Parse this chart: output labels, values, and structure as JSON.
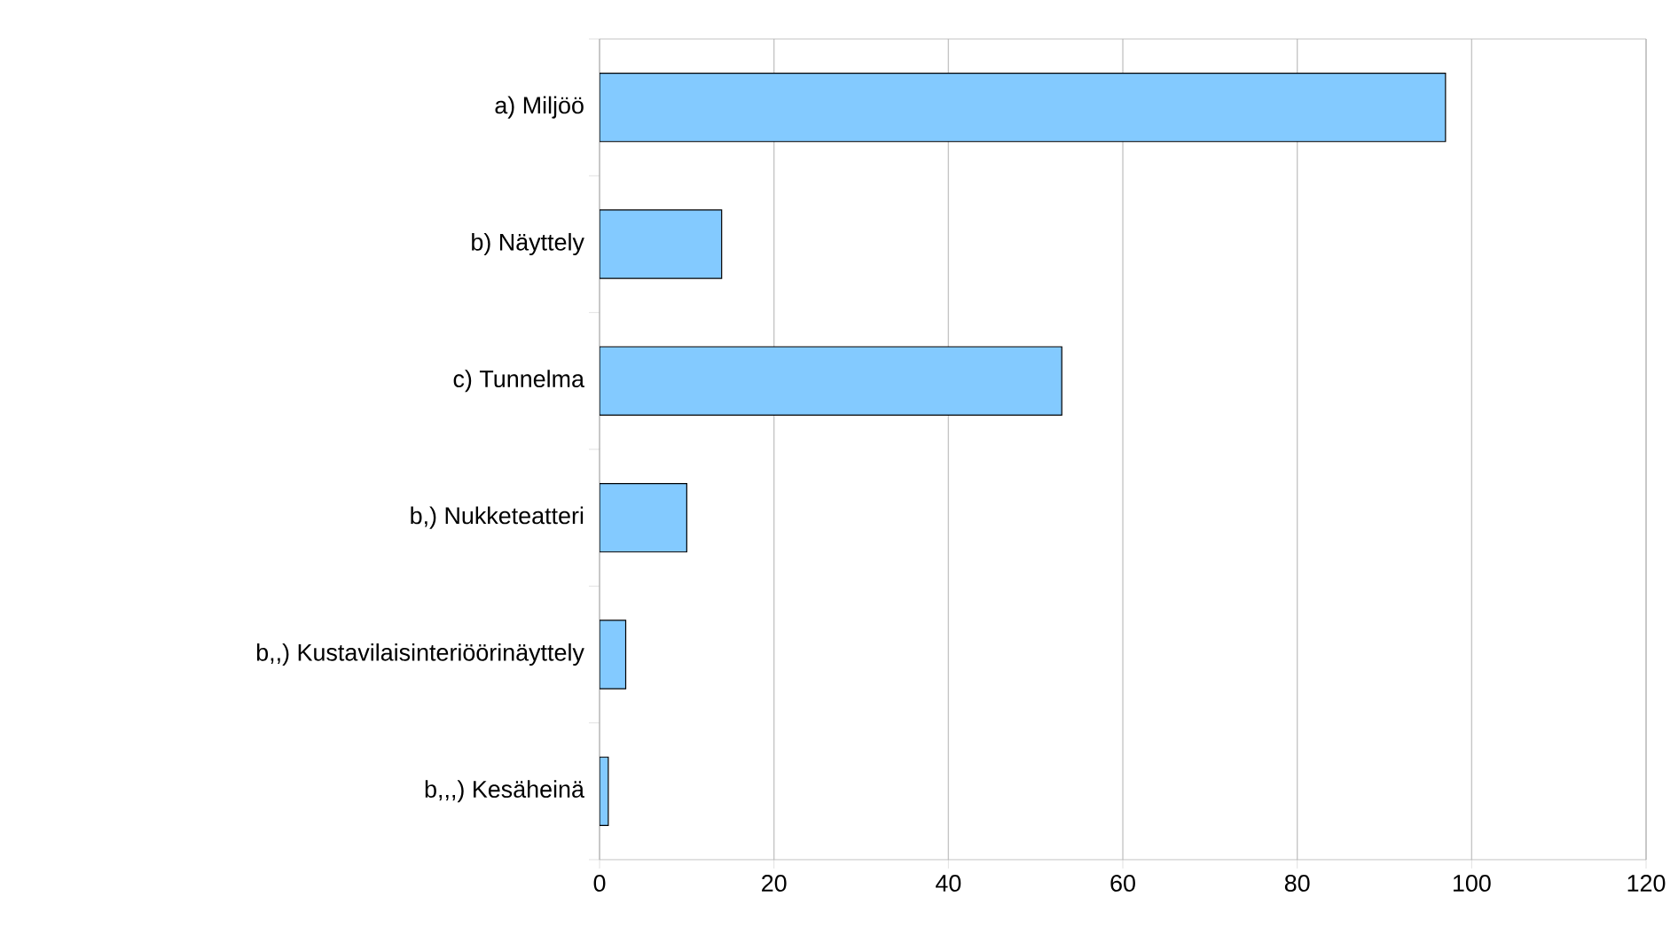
{
  "chart_data": {
    "type": "bar",
    "orientation": "horizontal",
    "categories": [
      "a) Miljöö",
      "b) Näyttely",
      "c) Tunnelma",
      "b,) Nukketeatteri",
      "b,,) Kustavilaisinteriöörinäyttely",
      "b,,,) Kesäheinä"
    ],
    "values": [
      97,
      14,
      53,
      10,
      3,
      1
    ],
    "color": "#83caff",
    "xlim": [
      0,
      120
    ],
    "xticks": [
      0,
      20,
      40,
      60,
      80,
      100,
      120
    ],
    "grid": "x"
  }
}
